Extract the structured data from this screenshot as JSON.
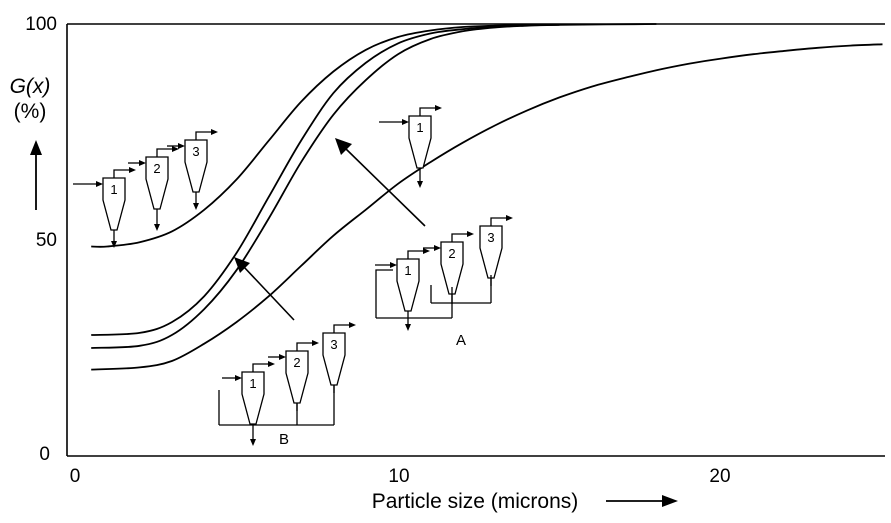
{
  "chart_data": {
    "type": "line",
    "xlabel": "Particle size (microns)",
    "ylabel_main": "G(x)",
    "ylabel_unit": "(%)",
    "xlim": [
      0,
      25
    ],
    "ylim": [
      0,
      100
    ],
    "x_ticks": [
      0,
      10,
      20
    ],
    "y_ticks": [
      0,
      50,
      100
    ],
    "grid": false,
    "series": [
      {
        "values": [
          [
            0.5,
            48.5
          ],
          [
            1,
            48.5
          ],
          [
            2,
            49.5
          ],
          [
            3,
            52
          ],
          [
            4,
            57
          ],
          [
            5,
            64
          ],
          [
            6,
            73
          ],
          [
            7,
            82
          ],
          [
            8,
            89
          ],
          [
            9,
            94
          ],
          [
            10,
            97
          ],
          [
            11,
            98.5
          ],
          [
            12,
            99.3
          ],
          [
            13,
            99.6
          ],
          [
            14,
            99.8
          ],
          [
            15,
            99.9
          ]
        ]
      },
      {
        "values": [
          [
            0.5,
            28
          ],
          [
            2,
            28.5
          ],
          [
            3,
            31
          ],
          [
            4,
            37
          ],
          [
            5,
            47
          ],
          [
            6,
            60
          ],
          [
            7,
            73
          ],
          [
            8,
            84
          ],
          [
            9,
            91
          ],
          [
            10,
            95.5
          ],
          [
            11,
            97.8
          ],
          [
            12,
            98.8
          ],
          [
            13,
            99.4
          ],
          [
            14,
            99.7
          ],
          [
            15,
            99.8
          ]
        ]
      },
      {
        "values": [
          [
            0.5,
            25
          ],
          [
            2,
            25.5
          ],
          [
            3,
            28
          ],
          [
            4,
            34
          ],
          [
            5,
            43
          ],
          [
            6,
            55
          ],
          [
            7,
            68
          ],
          [
            8,
            79
          ],
          [
            9,
            87
          ],
          [
            10,
            93
          ],
          [
            11,
            96.5
          ],
          [
            12,
            98.3
          ],
          [
            13,
            99.2
          ],
          [
            14,
            99.6
          ],
          [
            15,
            99.8
          ],
          [
            18,
            100
          ]
        ]
      },
      {
        "values": [
          [
            0.5,
            20
          ],
          [
            2,
            20.5
          ],
          [
            3,
            22
          ],
          [
            4,
            26
          ],
          [
            5,
            31
          ],
          [
            6,
            37
          ],
          [
            7,
            44
          ],
          [
            8,
            51
          ],
          [
            9,
            57
          ],
          [
            10,
            63
          ],
          [
            11,
            68
          ],
          [
            12,
            72.5
          ],
          [
            13,
            76.5
          ],
          [
            14,
            80
          ],
          [
            15,
            83
          ],
          [
            16,
            85.5
          ],
          [
            17,
            87.5
          ],
          [
            18,
            89.3
          ],
          [
            19,
            90.8
          ],
          [
            20,
            92
          ],
          [
            21,
            93
          ],
          [
            22,
            93.8
          ],
          [
            23,
            94.5
          ],
          [
            24,
            95
          ],
          [
            25,
            95.3
          ]
        ]
      }
    ],
    "annotations": [
      "A",
      "B"
    ],
    "cyclone_labels": [
      "1",
      "2",
      "3"
    ],
    "xlabel_arrow": "→"
  }
}
